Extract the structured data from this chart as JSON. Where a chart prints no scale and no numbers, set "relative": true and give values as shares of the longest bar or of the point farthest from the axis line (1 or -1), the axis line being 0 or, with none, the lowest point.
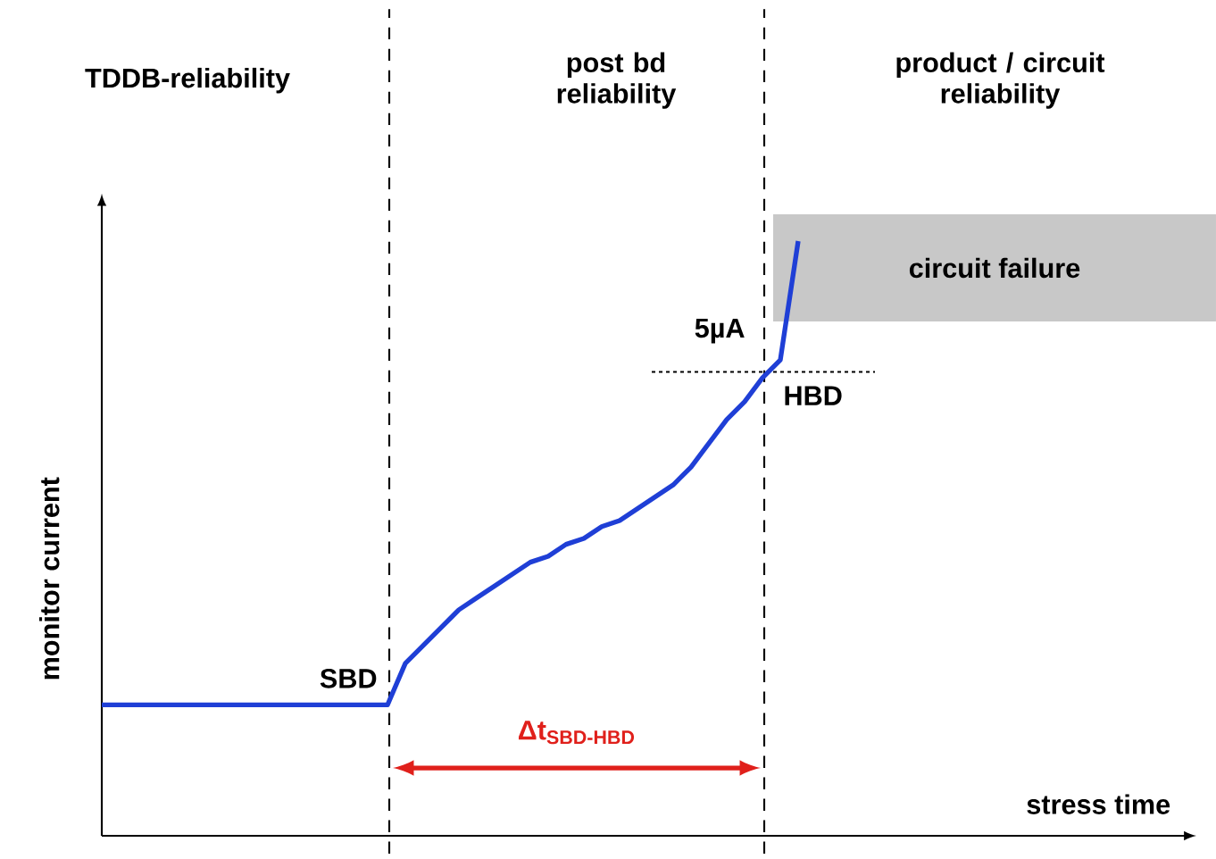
{
  "chart_data": {
    "type": "line",
    "relative": true,
    "ylabel": "monitor current",
    "ref_lines": [
      {
        "axis": "y",
        "value": 0.78,
        "line_style": "dotted"
      }
    ],
    "bands": [
      {
        "axis": "y",
        "from": 0.865,
        "to": 1.045,
        "color": "#c8c8c8"
      }
    ],
    "categories": [
      null,
      null,
      null,
      null,
      null,
      null,
      null,
      null,
      null,
      null,
      null,
      null,
      null,
      null,
      null,
      null,
      null,
      null,
      null,
      null,
      null,
      null,
      null,
      null,
      null,
      null,
      null,
      null,
      null,
      null,
      null,
      null,
      null,
      null,
      null,
      null,
      null,
      null,
      null,
      null
    ],
    "series": [
      {
        "color": "#1f3fd6",
        "values": [
          0.22,
          0.22,
          0.22,
          0.22,
          0.22,
          0.22,
          0.22,
          0.22,
          0.22,
          0.22,
          0.22,
          0.22,
          0.22,
          0.22,
          0.22,
          0.22,
          0.22,
          0.29,
          0.32,
          0.35,
          0.38,
          0.4,
          0.42,
          0.44,
          0.46,
          0.47,
          0.49,
          0.5,
          0.52,
          0.53,
          0.55,
          0.57,
          0.59,
          0.62,
          0.66,
          0.7,
          0.73,
          0.77,
          0.8,
          1.0
        ]
      }
    ],
    "annotations": [
      "TDDB-reliability",
      "post bd reliability",
      "product / circuit reliability",
      "circuit failure",
      "SBD",
      "5µA",
      "HBD",
      "Δt$_{SBD-HBD}$",
      "stress time"
    ]
  }
}
